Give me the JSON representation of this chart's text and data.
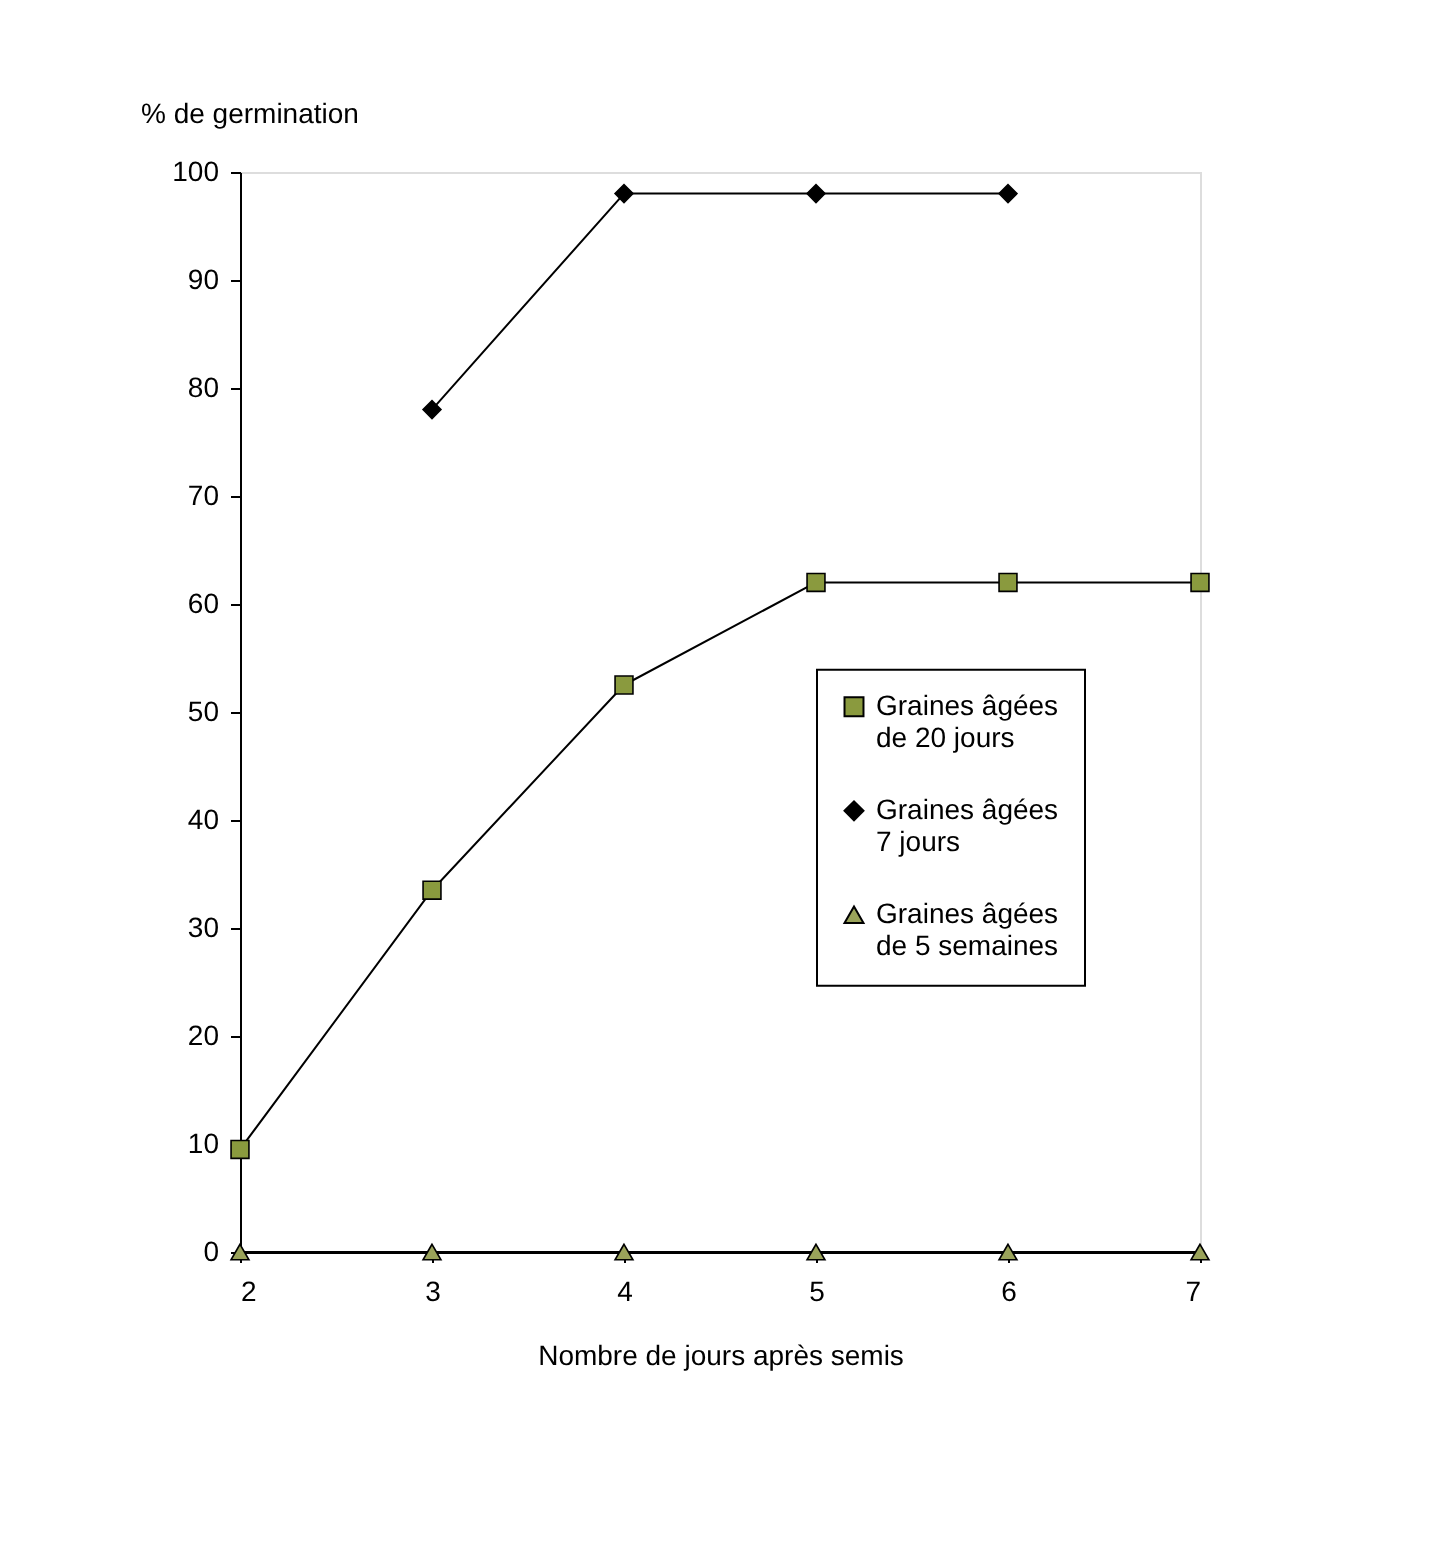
{
  "chart_data": {
    "type": "line",
    "xlabel": "Nombre de jours après semis",
    "ylabel": "% de germination",
    "x": [
      2,
      3,
      4,
      5,
      6,
      7
    ],
    "xlim": [
      2,
      7
    ],
    "xticks": [
      2,
      3,
      4,
      5,
      6,
      7
    ],
    "ylim": [
      0,
      100
    ],
    "yticks": [
      0,
      10,
      20,
      30,
      40,
      50,
      60,
      70,
      80,
      90,
      100
    ],
    "grid": false,
    "legend": "right",
    "series": [
      {
        "name": "Graines âgées de 20 jours",
        "color": "#8a9a3e",
        "marker": "square",
        "values": [
          9.5,
          33.5,
          52.5,
          62,
          62,
          62
        ]
      },
      {
        "name": "Graines âgées 7 jours",
        "color": "#000000",
        "marker": "diamond",
        "values": [
          null,
          78,
          98,
          98,
          98,
          null
        ]
      },
      {
        "name": "Graines âgées de 5 semaines",
        "color": "#9aa35a",
        "marker": "triangle",
        "values": [
          0,
          0,
          0,
          0,
          0,
          0
        ]
      }
    ]
  }
}
